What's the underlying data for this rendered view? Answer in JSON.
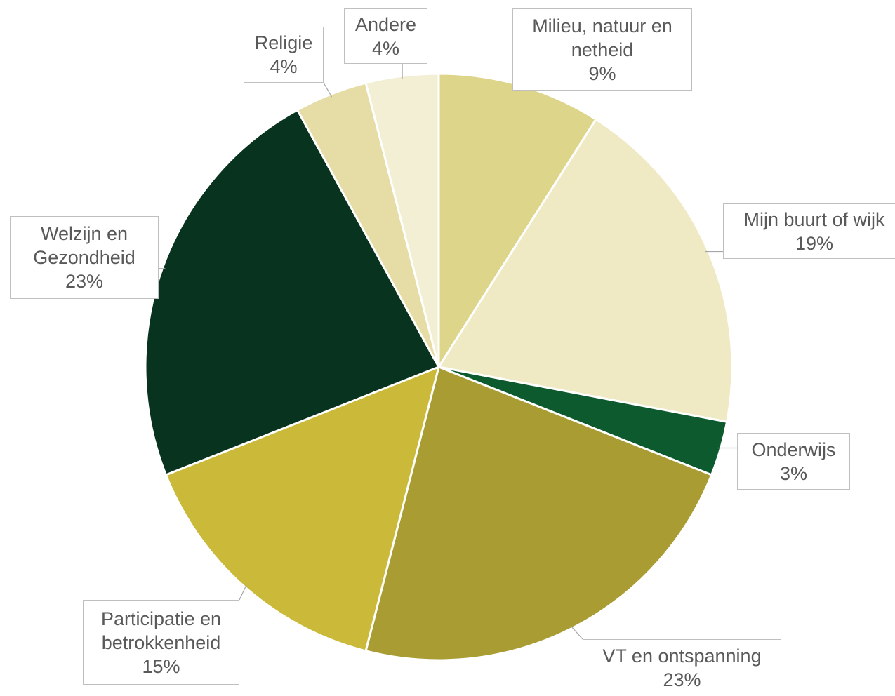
{
  "chart_data": {
    "type": "pie",
    "categories": [
      "Milieu, natuur en netheid",
      "Mijn buurt of wijk",
      "Onderwijs",
      "VT en ontspanning",
      "Participatie en betrokkenheid",
      "Welzijn en Gezondheid",
      "Religie",
      "Andere"
    ],
    "values": [
      9,
      19,
      3,
      23,
      15,
      23,
      4,
      4
    ],
    "value_labels": [
      "9%",
      "19%",
      "3%",
      "23%",
      "15%",
      "23%",
      "4%",
      "4%"
    ],
    "colors": [
      "#ddd58a",
      "#efe9c4",
      "#0d5a2e",
      "#a99c32",
      "#cbb93a",
      "#08331e",
      "#e5dda5",
      "#f3efd4"
    ]
  }
}
